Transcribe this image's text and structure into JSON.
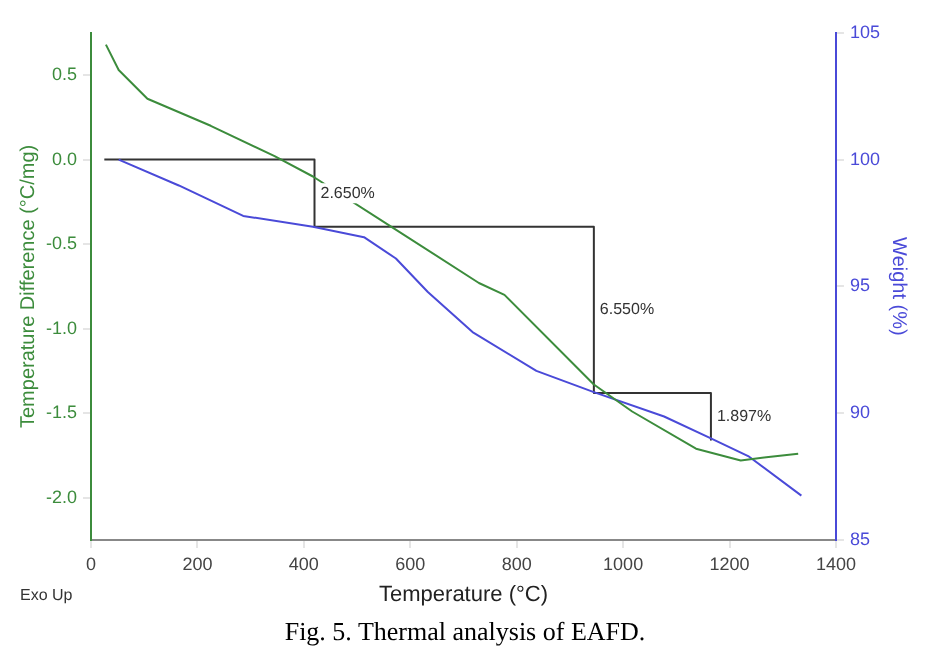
{
  "chart_data": {
    "type": "line",
    "xlabel": "Temperature (°C)",
    "ylabel": "Temperature Difference (°C/mg)",
    "y2label": "Weight (%)",
    "xlim": [
      0,
      1400
    ],
    "xticks": [
      0,
      200,
      400,
      600,
      800,
      1000,
      1200,
      1400
    ],
    "ylim": [
      -2.25,
      0.75
    ],
    "yticks": [
      {
        "value": -2,
        "label": "-2.0"
      },
      -1.5,
      {
        "value": -1,
        "label": "-1.0"
      },
      -0.5,
      {
        "value": 0,
        "label": "0.0"
      },
      0.5
    ],
    "y2lim": [
      85,
      105
    ],
    "y2ticks": [
      85,
      90,
      95,
      100,
      105
    ],
    "grid": false,
    "legend": false,
    "marker": "none",
    "line_style": "solid",
    "series": [
      {
        "color": "#3c8c3c",
        "x": [
          28,
          52,
          106,
          225,
          345,
          417,
          561,
          729,
          777,
          945,
          1017,
          1137,
          1221,
          1269,
          1329
        ],
        "values": [
          0.68,
          0.53,
          0.36,
          0.2,
          0.02,
          -0.1,
          -0.39,
          -0.73,
          -0.8,
          -1.33,
          -1.49,
          -1.71,
          -1.78,
          -1.76,
          -1.74
        ]
      },
      {
        "color": "#4a4ad8",
        "axis": "y2",
        "x": [
          52,
          165,
          286,
          417,
          513,
          573,
          633,
          717,
          837,
          945,
          1077,
          1163,
          1235,
          1335
        ],
        "values": [
          100,
          98.98,
          97.78,
          97.35,
          96.94,
          96.1,
          94.78,
          93.2,
          91.67,
          90.83,
          89.87,
          89.03,
          88.31,
          86.75
        ]
      },
      {
        "color": "#333333",
        "axis": "y2",
        "x": [
          25,
          420,
          420,
          945,
          945,
          1165,
          1165
        ],
        "values": [
          100,
          100,
          97.35,
          97.35,
          90.8,
          90.8,
          88.95
        ]
      }
    ],
    "annotations": [
      "2.650%",
      "6.550%",
      "1.897%",
      "Exo Up",
      "Fig. 5. Thermal analysis of EAFD."
    ]
  }
}
